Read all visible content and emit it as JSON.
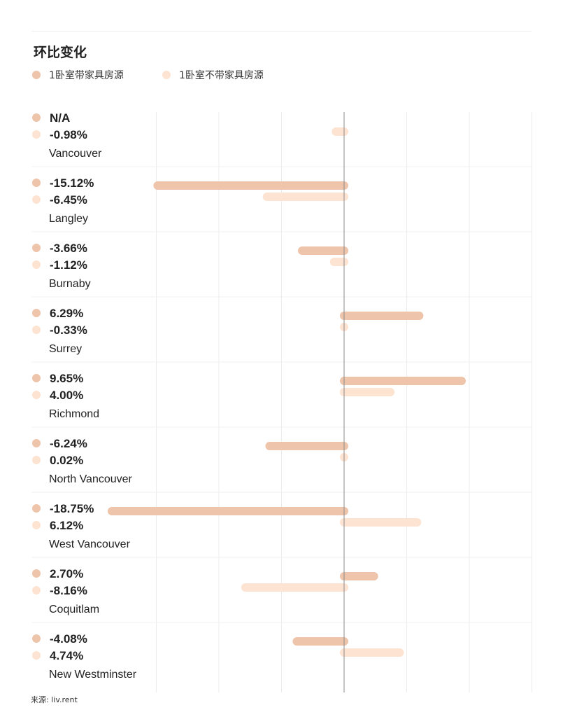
{
  "title": "环比变化",
  "source": "来源: liv.rent",
  "colors": {
    "furnished": "#eec4aa",
    "unfurnished": "#fde3d1",
    "zero_line": "#8a8a8a",
    "grid": "#ececec"
  },
  "chart_data": {
    "type": "bar",
    "orientation": "horizontal",
    "unit": "%",
    "xlim": [
      -22,
      16
    ],
    "grid": true,
    "legend_position": "top-left",
    "series": [
      {
        "name": "1卧室带家具房源",
        "key": "furnished"
      },
      {
        "name": "1卧室不带家具房源",
        "key": "unfurnished"
      }
    ],
    "categories": [
      {
        "name": "Vancouver",
        "furnished": null,
        "furnished_label": "N/A",
        "unfurnished": -0.98,
        "unfurnished_label": "-0.98%"
      },
      {
        "name": "Langley",
        "furnished": -15.12,
        "furnished_label": "-15.12%",
        "unfurnished": -6.45,
        "unfurnished_label": "-6.45%"
      },
      {
        "name": "Burnaby",
        "furnished": -3.66,
        "furnished_label": "-3.66%",
        "unfurnished": -1.12,
        "unfurnished_label": "-1.12%"
      },
      {
        "name": "Surrey",
        "furnished": 6.29,
        "furnished_label": "6.29%",
        "unfurnished": -0.33,
        "unfurnished_label": "-0.33%"
      },
      {
        "name": "Richmond",
        "furnished": 9.65,
        "furnished_label": "9.65%",
        "unfurnished": 4.0,
        "unfurnished_label": "4.00%"
      },
      {
        "name": "North Vancouver",
        "furnished": -6.24,
        "furnished_label": "-6.24%",
        "unfurnished": 0.02,
        "unfurnished_label": "0.02%"
      },
      {
        "name": "West Vancouver",
        "furnished": -18.75,
        "furnished_label": "-18.75%",
        "unfurnished": 6.12,
        "unfurnished_label": "6.12%"
      },
      {
        "name": "Coquitlam",
        "furnished": 2.7,
        "furnished_label": "2.70%",
        "unfurnished": -8.16,
        "unfurnished_label": "-8.16%"
      },
      {
        "name": "New Westminster",
        "furnished": -4.08,
        "furnished_label": "-4.08%",
        "unfurnished": 4.74,
        "unfurnished_label": "4.74%"
      }
    ]
  }
}
